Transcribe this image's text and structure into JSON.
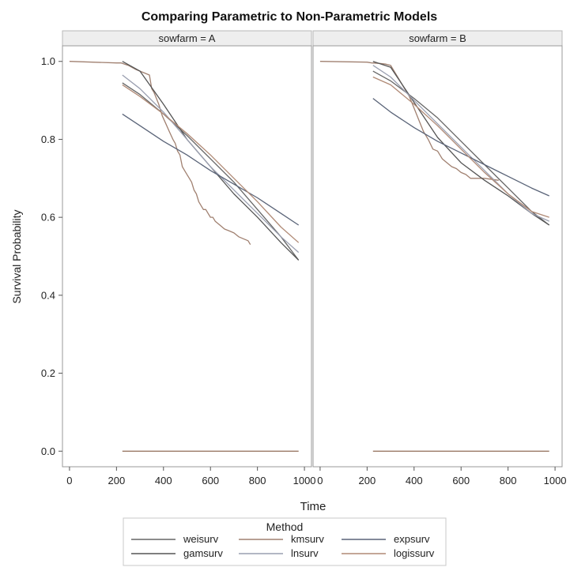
{
  "chart_data": {
    "type": "line",
    "title": "Comparing Parametric to Non-Parametric Models",
    "xlabel": "Time",
    "ylabel": "Survival Probability",
    "xlim": [
      -30,
      1030
    ],
    "ylim": [
      -0.04,
      1.04
    ],
    "xticks": [
      "0",
      "200",
      "400",
      "600",
      "800",
      "1000"
    ],
    "yticks": [
      "0.0",
      "0.2",
      "0.4",
      "0.6",
      "0.8",
      "1.0"
    ],
    "grid": false,
    "legend": {
      "title": "Method",
      "placement": "bottom",
      "entries": [
        "weisurv",
        "kmsurv",
        "expsurv",
        "gamsurv",
        "lnsurv",
        "logissurv"
      ]
    },
    "colors": {
      "weisurv": "#666666",
      "gamsurv": "#555555",
      "kmsurv": "#a08070",
      "expsurv": "#5a6478",
      "lnsurv": "#9a9fb0",
      "logissurv": "#b08a76"
    },
    "panels": [
      {
        "label": "sowfarm = A",
        "series": [
          {
            "name": "kmsurv",
            "x": [
              0,
              200,
              220,
              250,
              280,
              300,
              320,
              340,
              350,
              360,
              380,
              395,
              410,
              425,
              440,
              450,
              460,
              470,
              480,
              490,
              500,
              510,
              520,
              530,
              540,
              550,
              560,
              570,
              580,
              590,
              600,
              610,
              620,
              640,
              660,
              680,
              700,
              720,
              740,
              760,
              770
            ],
            "y": [
              1.0,
              0.996,
              0.996,
              0.99,
              0.98,
              0.975,
              0.97,
              0.965,
              0.93,
              0.92,
              0.89,
              0.86,
              0.84,
              0.82,
              0.8,
              0.79,
              0.77,
              0.76,
              0.73,
              0.72,
              0.71,
              0.7,
              0.69,
              0.67,
              0.66,
              0.64,
              0.63,
              0.62,
              0.62,
              0.61,
              0.6,
              0.6,
              0.59,
              0.58,
              0.57,
              0.565,
              0.56,
              0.55,
              0.545,
              0.54,
              0.53
            ]
          },
          {
            "name": "weisurv",
            "x": [
              225,
              300,
              400,
              500,
              600,
              700,
              800,
              900,
              975
            ],
            "y": [
              0.945,
              0.915,
              0.865,
              0.81,
              0.75,
              0.69,
              0.62,
              0.55,
              0.49
            ]
          },
          {
            "name": "gamsurv",
            "x": [
              225,
              300,
              400,
              500,
              600,
              700,
              800,
              900,
              975
            ],
            "y": [
              1.0,
              0.975,
              0.89,
              0.8,
              0.73,
              0.66,
              0.6,
              0.535,
              0.49
            ]
          },
          {
            "name": "lnsurv",
            "x": [
              225,
              300,
              400,
              500,
              600,
              700,
              800,
              900,
              975
            ],
            "y": [
              0.965,
              0.93,
              0.87,
              0.8,
              0.73,
              0.67,
              0.61,
              0.55,
              0.51
            ]
          },
          {
            "name": "expsurv",
            "x": [
              225,
              300,
              400,
              500,
              600,
              700,
              800,
              900,
              975
            ],
            "y": [
              0.865,
              0.835,
              0.795,
              0.76,
              0.72,
              0.685,
              0.65,
              0.61,
              0.58
            ]
          },
          {
            "name": "logissurv",
            "x": [
              225,
              300,
              400,
              500,
              600,
              700,
              800,
              900,
              975
            ],
            "y": [
              0.94,
              0.91,
              0.865,
              0.815,
              0.76,
              0.7,
              0.64,
              0.575,
              0.535
            ]
          },
          {
            "name": "zero",
            "x": [
              225,
              975
            ],
            "y": [
              0.0,
              0.0
            ]
          }
        ]
      },
      {
        "label": "sowfarm = B",
        "series": [
          {
            "name": "kmsurv",
            "x": [
              0,
              200,
              220,
              250,
              280,
              300,
              330,
              350,
              380,
              400,
              420,
              440,
              460,
              480,
              500,
              520,
              540,
              560,
              580,
              600,
              620,
              640,
              660,
              700,
              760
            ],
            "y": [
              1.0,
              0.998,
              0.996,
              0.995,
              0.993,
              0.99,
              0.96,
              0.94,
              0.91,
              0.88,
              0.85,
              0.82,
              0.8,
              0.775,
              0.77,
              0.75,
              0.74,
              0.73,
              0.725,
              0.715,
              0.71,
              0.7,
              0.7,
              0.7,
              0.695
            ]
          },
          {
            "name": "weisurv",
            "x": [
              225,
              300,
              400,
              500,
              600,
              700,
              800,
              900,
              975
            ],
            "y": [
              0.975,
              0.95,
              0.905,
              0.855,
              0.795,
              0.735,
              0.675,
              0.615,
              0.58
            ]
          },
          {
            "name": "gamsurv",
            "x": [
              225,
              300,
              400,
              500,
              600,
              700,
              800,
              900,
              975
            ],
            "y": [
              1.0,
              0.985,
              0.895,
              0.805,
              0.74,
              0.695,
              0.655,
              0.61,
              0.58
            ]
          },
          {
            "name": "lnsurv",
            "x": [
              225,
              300,
              400,
              500,
              600,
              700,
              800,
              900,
              975
            ],
            "y": [
              0.99,
              0.96,
              0.9,
              0.84,
              0.78,
              0.72,
              0.66,
              0.61,
              0.59
            ]
          },
          {
            "name": "expsurv",
            "x": [
              225,
              300,
              400,
              500,
              600,
              700,
              800,
              900,
              975
            ],
            "y": [
              0.905,
              0.87,
              0.83,
              0.795,
              0.765,
              0.735,
              0.705,
              0.675,
              0.655
            ]
          },
          {
            "name": "logissurv",
            "x": [
              225,
              300,
              400,
              500,
              600,
              700,
              800,
              900,
              975
            ],
            "y": [
              0.96,
              0.94,
              0.89,
              0.835,
              0.775,
              0.715,
              0.66,
              0.615,
              0.6
            ]
          },
          {
            "name": "zero",
            "x": [
              225,
              975
            ],
            "y": [
              0.0,
              0.0
            ]
          }
        ]
      }
    ]
  }
}
